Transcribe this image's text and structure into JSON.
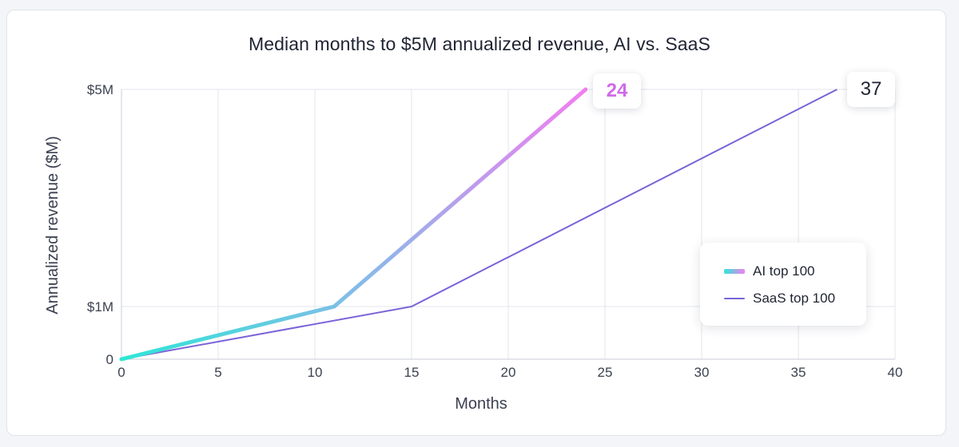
{
  "chart_data": {
    "type": "line",
    "title": "Median months to $5M annualized revenue, AI vs. SaaS",
    "xlabel": "Months",
    "ylabel": "Annualized revenue ($M)",
    "xlim": [
      0,
      40
    ],
    "xticks": [
      0,
      5,
      10,
      15,
      20,
      25,
      30,
      35,
      40
    ],
    "yticks": [
      {
        "value": 0,
        "label": "0"
      },
      {
        "value": 1,
        "label": "$1M"
      },
      {
        "value": 5,
        "label": "$5M"
      }
    ],
    "grid": "vertical",
    "legend_position": "bottom-right",
    "series": [
      {
        "name": "AI top 100",
        "points": [
          [
            0,
            0
          ],
          [
            11,
            1
          ],
          [
            24,
            5
          ]
        ],
        "color_start": "#2ee6d6",
        "color_end": "#f27ef0",
        "end_label": "24",
        "end_label_color": "#d169e8"
      },
      {
        "name": "SaaS top 100",
        "points": [
          [
            0,
            0
          ],
          [
            15,
            1
          ],
          [
            37,
            5
          ]
        ],
        "color": "#7b63d8",
        "end_label": "37",
        "end_label_color": "#1f2433"
      }
    ]
  }
}
